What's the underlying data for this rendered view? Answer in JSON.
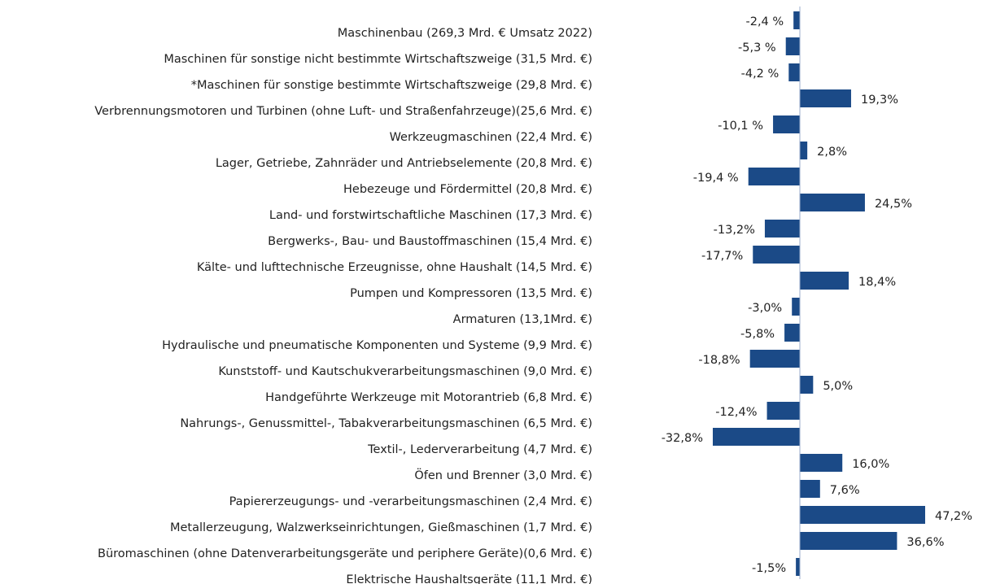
{
  "chart_data": {
    "type": "bar",
    "orientation": "horizontal",
    "color": "#1b4a87",
    "categories": [
      "Maschinenbau (269,3 Mrd. € Umsatz 2022)",
      "Maschinen für sonstige nicht bestimmte Wirtschaftszweige (31,5 Mrd. €)",
      "*Maschinen für sonstige bestimmte Wirtschaftszweige (29,8 Mrd. €)",
      "Verbrennungsmotoren und Turbinen (ohne Luft- und Straßenfahrzeuge)(25,6 Mrd. €)",
      "Werkzeugmaschinen (22,4 Mrd. €)",
      "Lager, Getriebe, Zahnräder und Antriebselemente (20,8 Mrd. €)",
      "Hebezeuge und Fördermittel (20,8 Mrd. €)",
      "Land- und forstwirtschaftliche Maschinen (17,3 Mrd. €)",
      "Bergwerks-, Bau- und Baustoffmaschinen (15,4 Mrd. €)",
      "Kälte- und lufttechnische Erzeugnisse, ohne Haushalt (14,5 Mrd. €)",
      "Pumpen und Kompressoren (13,5 Mrd. €)",
      "Armaturen (13,1Mrd. €)",
      "Hydraulische und pneumatische Komponenten und Systeme (9,9 Mrd. €)",
      "Kunststoff- und Kautschukverarbeitungsmaschinen (9,0 Mrd. €)",
      "Handgeführte Werkzeuge mit Motorantrieb (6,8 Mrd. €)",
      "Nahrungs-, Genussmittel-, Tabakverarbeitungsmaschinen (6,5 Mrd. €)",
      "Textil-, Lederverarbeitung (4,7 Mrd. €)",
      "Öfen und Brenner (3,0 Mrd. €)",
      "Papiererzeugungs- und -verarbeitungsmaschinen (2,4 Mrd. €)",
      "Metallerzeugung, Walzwerkseinrichtungen, Gießmaschinen (1,7 Mrd. €)",
      "Büromaschinen (ohne Datenverarbeitungsgeräte und periphere Geräte)(0,6 Mrd. €)",
      "Elektrische Haushaltsgeräte (11,1 Mrd. €)"
    ],
    "values": [
      -2.4,
      -5.3,
      -4.2,
      19.3,
      -10.1,
      2.8,
      -19.4,
      24.5,
      -13.2,
      -17.7,
      18.4,
      -3.0,
      -5.8,
      -18.8,
      5.0,
      -12.4,
      -32.8,
      16.0,
      7.6,
      47.2,
      36.6,
      -1.5
    ],
    "value_labels": [
      "-2,4 %",
      "-5,3 %",
      "-4,2 %",
      "19,3%",
      "-10,1 %",
      "2,8%",
      "-19,4 %",
      "24,5%",
      "-13,2%",
      "-17,7%",
      "18,4%",
      "-3,0%",
      "-5,8%",
      "-18,8%",
      "5,0%",
      "-12,4%",
      "-32,8%",
      "16,0%",
      "7,6%",
      "47,2%",
      "36,6%",
      "-1,5%"
    ]
  }
}
